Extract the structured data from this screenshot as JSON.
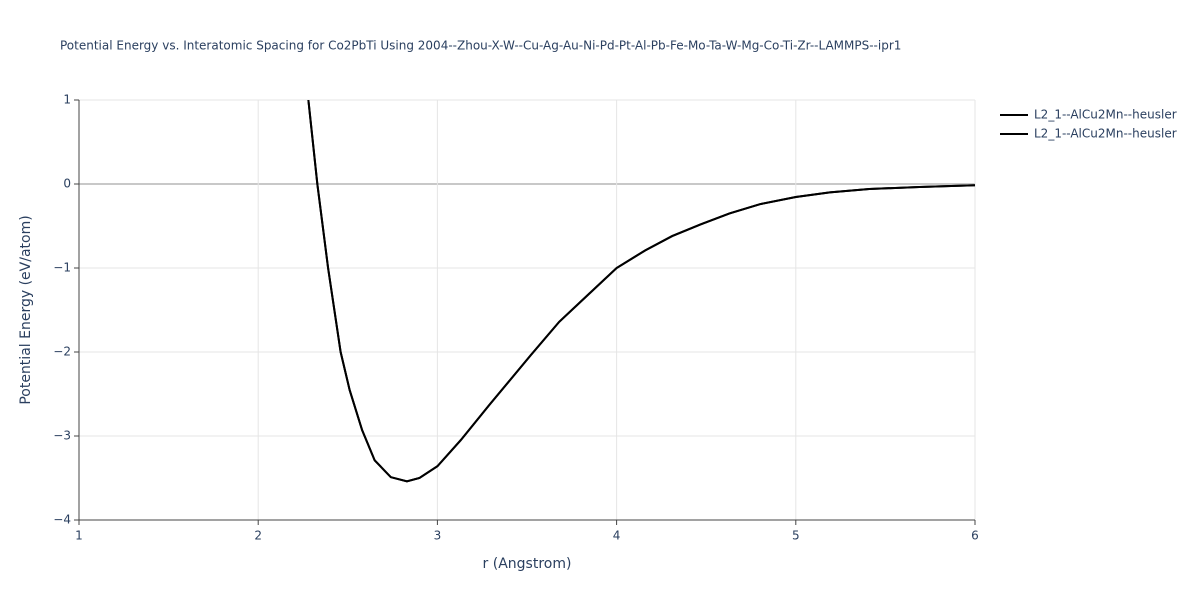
{
  "chart_data": {
    "type": "line",
    "title": "Potential Energy vs. Interatomic Spacing for Co2PbTi Using 2004--Zhou-X-W--Cu-Ag-Au-Ni-Pd-Pt-Al-Pb-Fe-Mo-Ta-W-Mg-Co-Ti-Zr--LAMMPS--ipr1",
    "x_label": "r (Angstrom)",
    "y_label": "Potential Energy (eV/atom)",
    "x": [
      2.28,
      2.33,
      2.39,
      2.46,
      2.51,
      2.58,
      2.65,
      2.74,
      2.83,
      2.9,
      3.0,
      3.13,
      3.29,
      3.52,
      3.68,
      3.82,
      4.0,
      4.16,
      4.31,
      4.47,
      4.63,
      4.8,
      5.0,
      5.19,
      5.41,
      5.69,
      6.0
    ],
    "series": [
      {
        "name": "L2_1--AlCu2Mn--heusler",
        "color": "#000000",
        "values": [
          1.0,
          0.0,
          -1.0,
          -2.0,
          -2.45,
          -2.93,
          -3.29,
          -3.49,
          -3.54,
          -3.5,
          -3.36,
          -3.05,
          -2.63,
          -2.04,
          -1.64,
          -1.36,
          -1.0,
          -0.79,
          -0.62,
          -0.48,
          -0.35,
          -0.24,
          -0.155,
          -0.1,
          -0.06,
          -0.035,
          -0.015
        ]
      },
      {
        "name": "L2_1--AlCu2Mn--heusler",
        "color": "#000000",
        "values": [
          1.0,
          0.0,
          -1.0,
          -2.0,
          -2.45,
          -2.93,
          -3.29,
          -3.49,
          -3.54,
          -3.5,
          -3.36,
          -3.05,
          -2.63,
          -2.04,
          -1.64,
          -1.36,
          -1.0,
          -0.79,
          -0.62,
          -0.48,
          -0.35,
          -0.24,
          -0.155,
          -0.1,
          -0.06,
          -0.035,
          -0.015
        ]
      }
    ],
    "xlim": [
      1,
      6
    ],
    "xticks": [
      1,
      2,
      3,
      4,
      5,
      6
    ],
    "ylim": [
      -4,
      1
    ],
    "yticks": [
      {
        "value": -4,
        "label": "−4"
      },
      {
        "value": -3,
        "label": "−3"
      },
      {
        "value": -2,
        "label": "−2"
      },
      {
        "value": -1,
        "label": "−1"
      },
      0,
      1
    ],
    "grid": true,
    "legend": "top-right"
  }
}
